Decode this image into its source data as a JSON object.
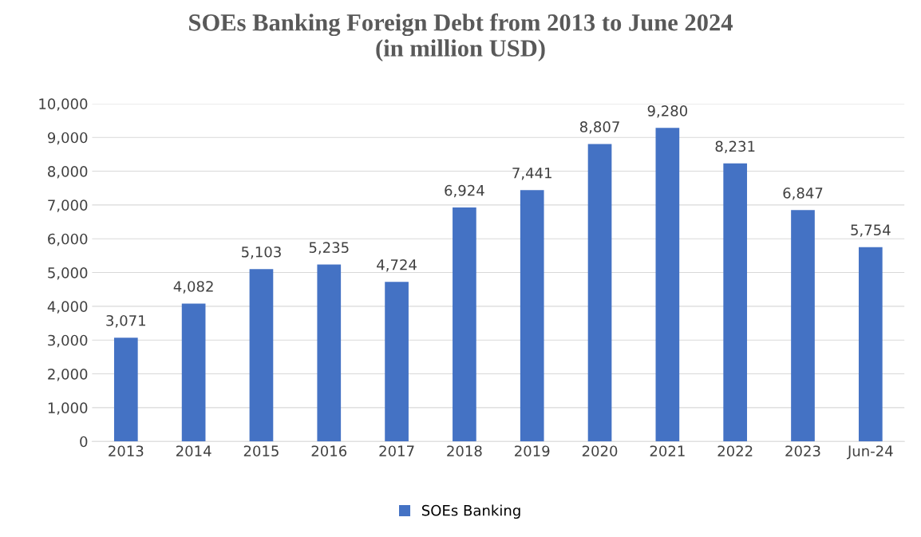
{
  "chart_data": {
    "type": "bar",
    "title": "SOEs Banking Foreign Debt from 2013 to June 2024\n(in million USD)",
    "categories": [
      "2013",
      "2014",
      "2015",
      "2016",
      "2017",
      "2018",
      "2019",
      "2020",
      "2021",
      "2022",
      "2023",
      "Jun-24"
    ],
    "series": [
      {
        "name": "SOEs Banking",
        "color": "#4472c4",
        "values": [
          3071,
          4082,
          5103,
          5235,
          4724,
          6924,
          7441,
          8807,
          9280,
          8231,
          6847,
          5754
        ],
        "value_labels": [
          "3,071",
          "4,082",
          "5,103",
          "5,235",
          "4,724",
          "6,924",
          "7,441",
          "8,807",
          "9,280",
          "8,231",
          "6,847",
          "5,754"
        ]
      }
    ],
    "ylim": [
      0,
      10000
    ],
    "yticks": [
      0,
      {
        "value": 1000,
        "label": "1,000"
      },
      {
        "value": 2000,
        "label": "2,000"
      },
      {
        "value": 3000,
        "label": "3,000"
      },
      {
        "value": 4000,
        "label": "4,000"
      },
      {
        "value": 5000,
        "label": "5,000"
      },
      {
        "value": 6000,
        "label": "6,000"
      },
      {
        "value": 7000,
        "label": "7,000"
      },
      {
        "value": 8000,
        "label": "8,000"
      },
      {
        "value": 9000,
        "label": "9,000"
      },
      {
        "value": 10000,
        "label": "10,000"
      }
    ],
    "grid": "y",
    "legend": "bottom"
  }
}
